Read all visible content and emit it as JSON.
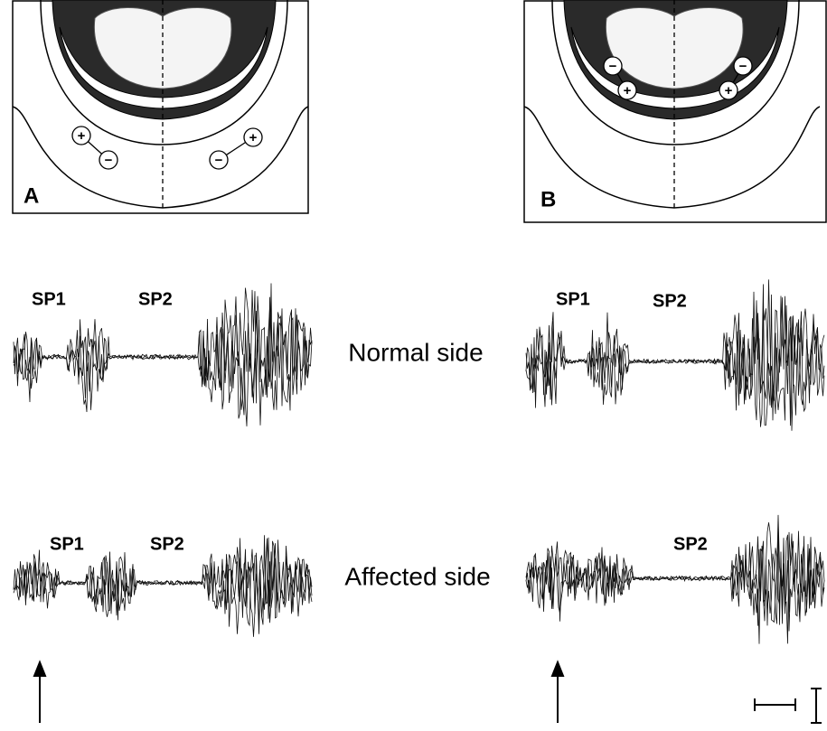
{
  "panels": [
    {
      "label": "A"
    },
    {
      "label": "B"
    }
  ],
  "electrodes": {
    "plus": "+",
    "minus": "−"
  },
  "traces": {
    "sp1": "SP1",
    "sp2": "SP2",
    "normal": "Normal side",
    "affected": "Affected side"
  }
}
